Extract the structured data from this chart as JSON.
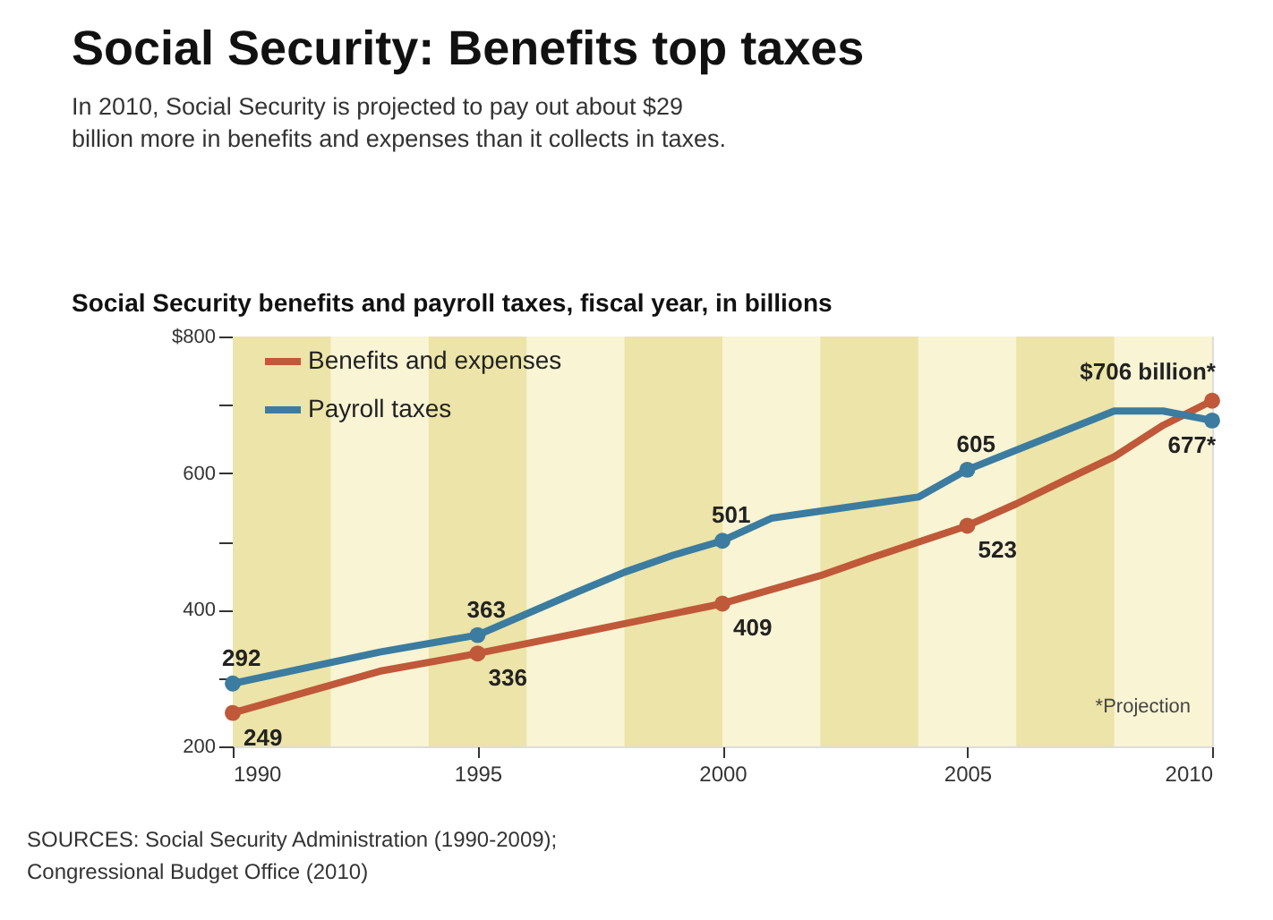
{
  "chart_data": {
    "type": "line",
    "title": "Social Security: Benefits top taxes",
    "subtitle": "In 2010, Social Security is projected to pay out about $29 billion more in benefits and expenses than it collects in taxes.",
    "ylabel": "Social Security benefits and payroll taxes, fiscal year, in billions",
    "xlim": [
      1990,
      2010
    ],
    "xticks": [
      1990,
      1995,
      2000,
      2005,
      2010
    ],
    "ylim": [
      200,
      800
    ],
    "yticks": [
      200,
      {
        "value": 300,
        "label": null
      },
      400,
      {
        "value": 500,
        "label": null
      },
      600,
      {
        "value": 700,
        "label": null
      },
      {
        "value": 800,
        "label": "$800"
      }
    ],
    "series": [
      {
        "name": "Benefits and expenses",
        "color": "#c0583a",
        "x": [
          1990,
          1993,
          1995,
          1997,
          2000,
          2002,
          2003,
          2005,
          2006,
          2007,
          2008,
          2009,
          2010
        ],
        "values": [
          249,
          310,
          336,
          365,
          409,
          450,
          475,
          523,
          555,
          590,
          624,
          670,
          706
        ],
        "value_labels": [
          "249",
          null,
          "336",
          null,
          "409",
          null,
          null,
          "523",
          null,
          null,
          null,
          null,
          "$706 billion*"
        ]
      },
      {
        "name": "Payroll taxes",
        "color": "#3b7ca0",
        "x": [
          1990,
          1993,
          1995,
          1997,
          1998,
          1999,
          2000,
          2001,
          2004,
          2005,
          2008,
          2009,
          2010
        ],
        "values": [
          292,
          338,
          363,
          425,
          455,
          480,
          501,
          534,
          565,
          605,
          691,
          691,
          677
        ],
        "value_labels": [
          "292",
          null,
          "363",
          null,
          null,
          null,
          "501",
          null,
          null,
          "605",
          null,
          null,
          "677*"
        ]
      }
    ],
    "bands": [
      {
        "axis": "x",
        "from": 1990,
        "to": 1992,
        "color": "#ece4a8"
      },
      {
        "axis": "x",
        "from": 1994,
        "to": 1996,
        "color": "#ece4a8"
      },
      {
        "axis": "x",
        "from": 1998,
        "to": 2000,
        "color": "#ece4a8"
      },
      {
        "axis": "x",
        "from": 2002,
        "to": 2004,
        "color": "#ece4a8"
      },
      {
        "axis": "x",
        "from": 2006,
        "to": 2008,
        "color": "#ece4a8"
      }
    ],
    "annotations": [
      "*Projection",
      "SOURCES: Social Security Administration (1990-2009); Congressional Budget Office (2010)"
    ],
    "legend": "top left"
  }
}
